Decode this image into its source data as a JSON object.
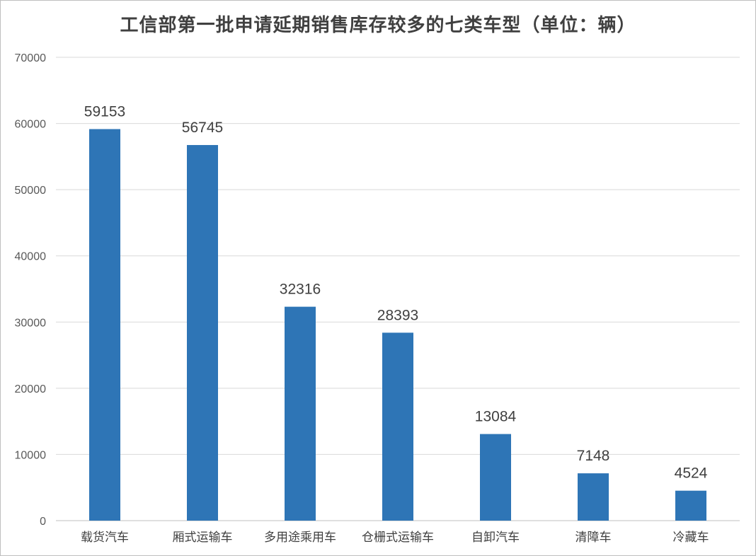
{
  "chart_data": {
    "type": "bar",
    "title": "工信部第一批申请延期销售库存较多的七类车型（单位：辆）",
    "xlabel": "",
    "ylabel": "",
    "ylim": [
      0,
      70000
    ],
    "yticks": [
      0,
      10000,
      20000,
      30000,
      40000,
      50000,
      60000,
      70000
    ],
    "grid": true,
    "legend": "none",
    "categories": [
      "载货汽车",
      "厢式运输车",
      "多用途乘用车",
      "仓栅式运输车",
      "自卸汽车",
      "清障车",
      "冷藏车"
    ],
    "values": [
      59153,
      56745,
      32316,
      28393,
      13084,
      7148,
      4524
    ],
    "data_labels": [
      "59153",
      "56745",
      "32316",
      "28393",
      "13084",
      "7148",
      "4524"
    ],
    "colors": {
      "bar": "#2e75b6",
      "grid": "#d9d9d9",
      "axis": "#bfbfbf"
    }
  }
}
